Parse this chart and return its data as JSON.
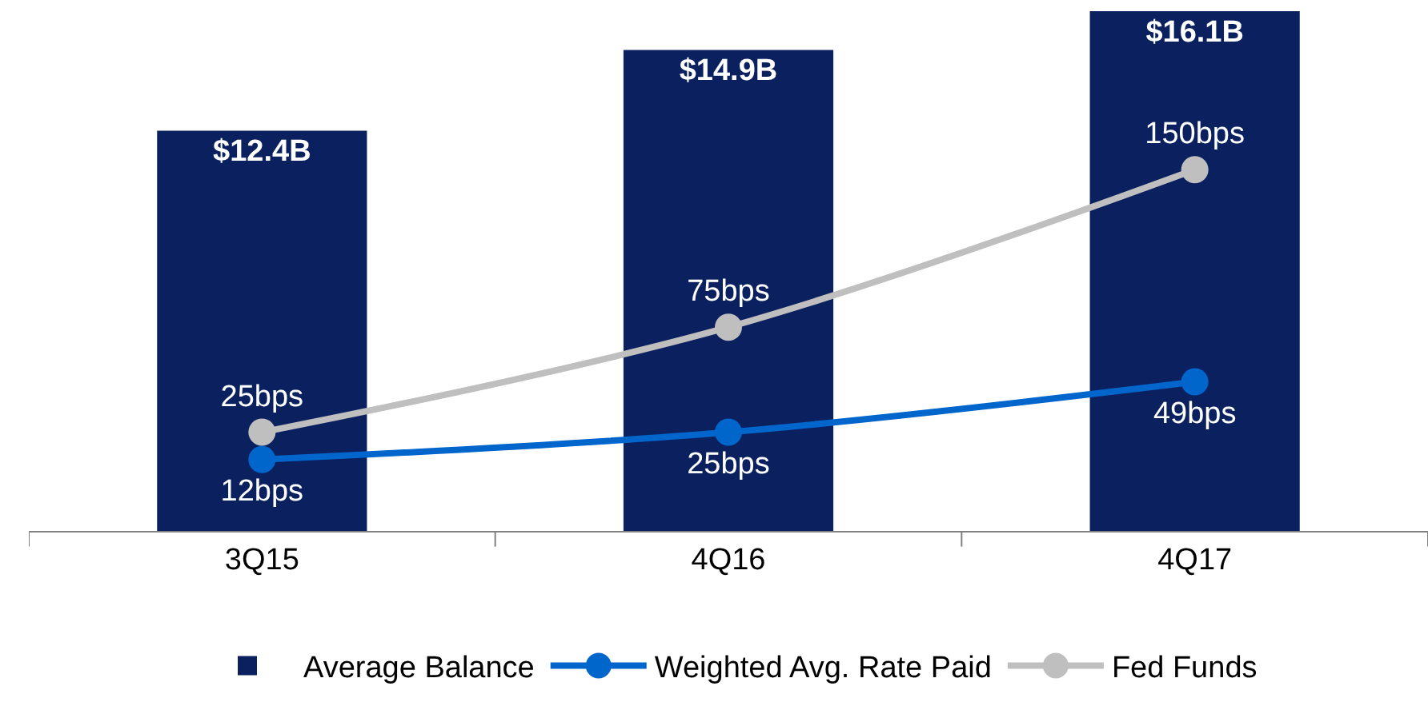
{
  "chart_data": {
    "type": "bar",
    "categories": [
      "3Q15",
      "4Q16",
      "4Q17"
    ],
    "ylim": [
      0,
      16.2
    ],
    "y2lim": [
      -22,
      227
    ],
    "legend": "bottom",
    "marker": "circle",
    "series": [
      {
        "name": "Average Balance",
        "color": "#0b215f",
        "values": [
          12.4,
          14.9,
          16.1
        ],
        "value_labels": [
          "$12.4B",
          "$14.9B",
          "$16.1B"
        ]
      },
      {
        "name": "Weighted Avg. Rate Paid",
        "type": "line",
        "axis": "y2",
        "color": "#0066cc",
        "values": [
          12,
          25,
          49
        ],
        "value_labels": [
          "12bps",
          "25bps",
          "49bps"
        ]
      },
      {
        "name": "Fed Funds",
        "type": "line",
        "axis": "y2",
        "color": "#bfbfbf",
        "values": [
          25,
          75,
          150
        ],
        "value_labels": [
          "25bps",
          "75bps",
          "150bps"
        ]
      }
    ]
  }
}
